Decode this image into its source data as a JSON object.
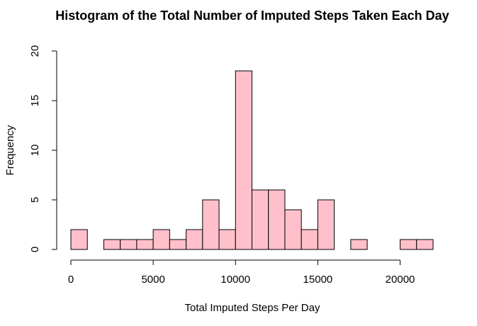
{
  "chart_data": {
    "type": "bar",
    "title": "Histogram of the Total Number of Imputed Steps Taken Each Day",
    "xlabel": "Total Imputed Steps Per Day",
    "ylabel": "Frequency",
    "bin_width": 1000,
    "bin_starts": [
      0,
      1000,
      2000,
      3000,
      4000,
      5000,
      6000,
      7000,
      8000,
      9000,
      10000,
      11000,
      12000,
      13000,
      14000,
      15000,
      16000,
      17000,
      18000,
      19000,
      20000,
      21000
    ],
    "values": [
      2,
      0,
      1,
      1,
      1,
      2,
      1,
      2,
      5,
      2,
      18,
      6,
      6,
      4,
      2,
      5,
      0,
      1,
      0,
      0,
      1,
      1
    ],
    "xlim": [
      0,
      22000
    ],
    "ylim": [
      0,
      20
    ],
    "x_ticks": [
      0,
      5000,
      10000,
      15000,
      20000
    ],
    "y_ticks": [
      0,
      5,
      10,
      15,
      20
    ],
    "bar_color": "#FFC0CB",
    "grid": false,
    "legend": "none"
  }
}
